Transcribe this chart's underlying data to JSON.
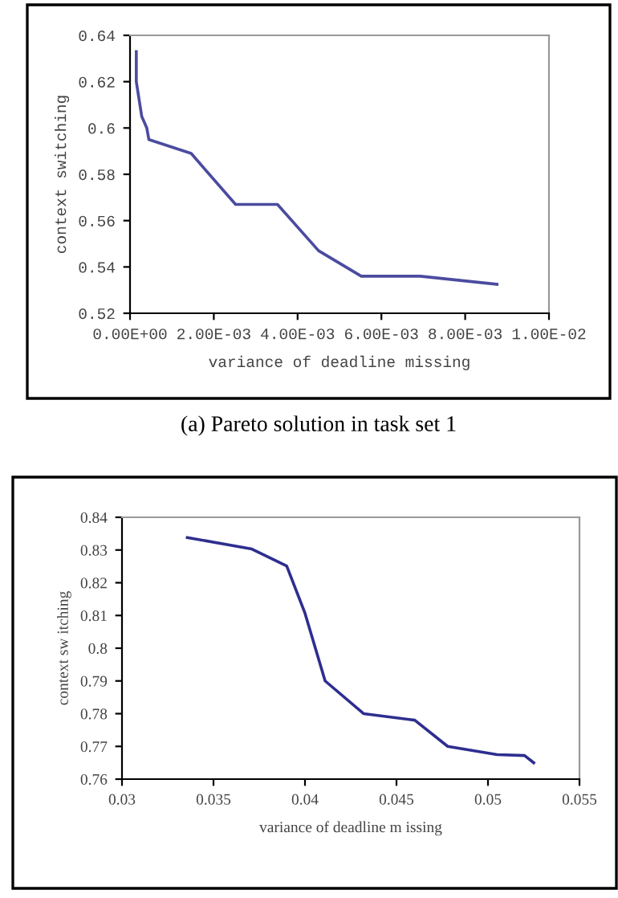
{
  "chart_data": [
    {
      "type": "line",
      "xlabel": "variance of deadline missing",
      "ylabel": "context switching",
      "annotations": [
        "(a) Pareto solution in task set 1"
      ],
      "x": [
        0.00015,
        0.00015,
        0.00028,
        0.0004,
        0.00045,
        0.00146,
        0.00252,
        0.00352,
        0.0045,
        0.00552,
        0.00693,
        0.00876
      ],
      "series": [
        {
          "color": "#4b4ba0",
          "values": [
            0.633,
            0.62,
            0.605,
            0.6,
            0.595,
            0.589,
            0.567,
            0.567,
            0.547,
            0.536,
            0.536,
            0.5325
          ]
        }
      ],
      "xlim": [
        0,
        0.01
      ],
      "xticks": [
        {
          "value": 0,
          "label": "0.00E+00"
        },
        {
          "value": 0.002,
          "label": "2.00E-03"
        },
        {
          "value": 0.004,
          "label": "4.00E-03"
        },
        {
          "value": 0.006,
          "label": "6.00E-03"
        },
        {
          "value": 0.008,
          "label": "8.00E-03"
        },
        {
          "value": 0.01,
          "label": "1.00E-02"
        }
      ],
      "ylim": [
        0.52,
        0.64
      ],
      "yticks": [
        0.52,
        0.54,
        0.56,
        0.58,
        {
          "value": 0.6,
          "label": "0.6"
        },
        0.62,
        0.64
      ],
      "grid": false,
      "legend": false
    },
    {
      "type": "line",
      "xlabel": "variance of deadline m issing",
      "ylabel": "context sw itching",
      "x": [
        0.03357,
        0.0371,
        0.039,
        0.04,
        0.0411,
        0.0432,
        0.046,
        0.0478,
        0.0505,
        0.052,
        0.0525
      ],
      "series": [
        {
          "color": "#2e2e90",
          "values": [
            0.8338,
            0.8303,
            0.8251,
            0.8107,
            0.79,
            0.78,
            0.778,
            0.77,
            0.7675,
            0.7672,
            0.765
          ]
        }
      ],
      "xlim": [
        0.03,
        0.055
      ],
      "xticks": [
        0.03,
        0.035,
        0.04,
        0.045,
        0.05,
        0.055
      ],
      "ylim": [
        0.76,
        0.84
      ],
      "yticks": [
        0.76,
        0.77,
        0.78,
        0.79,
        {
          "value": 0.8,
          "label": "0.8"
        },
        0.81,
        0.82,
        0.83,
        0.84
      ],
      "grid": false,
      "legend": false
    }
  ]
}
